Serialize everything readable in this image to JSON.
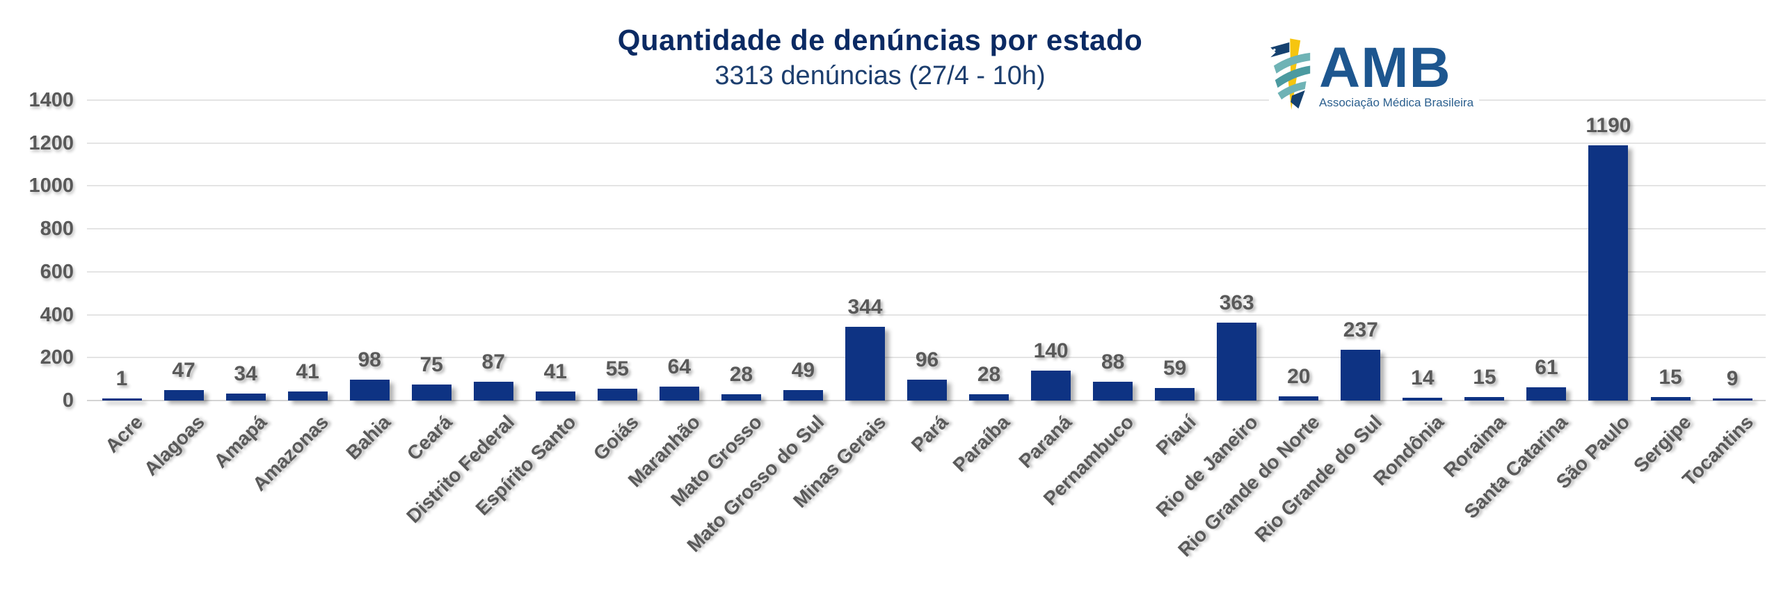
{
  "header": {
    "title": "Quantidade de denúncias por estado",
    "subtitle": "3313 denúncias (27/4 - 10h)"
  },
  "logo": {
    "acronym": "AMB",
    "tagline": "Associação Médica Brasileira",
    "icon": "caduceus-lightning-icon"
  },
  "chart_data": {
    "type": "bar",
    "title": "Quantidade de denúncias por estado",
    "subtitle": "3313 denúncias (27/4 - 10h)",
    "categories": [
      "Acre",
      "Alagoas",
      "Amapá",
      "Amazonas",
      "Bahia",
      "Ceará",
      "Distrito Federal",
      "Espírito Santo",
      "Goiás",
      "Maranhão",
      "Mato Grosso",
      "Mato Grosso do Sul",
      "Minas Gerais",
      "Pará",
      "Paraíba",
      "Paraná",
      "Pernambuco",
      "Piauí",
      "Rio de Janeiro",
      "Rio Grande do Norte",
      "Rio Grande do Sul",
      "Rondônia",
      "Roraima",
      "Santa Catarina",
      "São Paulo",
      "Sergipe",
      "Tocantins"
    ],
    "values": [
      1,
      47,
      34,
      41,
      98,
      75,
      87,
      41,
      55,
      64,
      28,
      49,
      344,
      96,
      28,
      140,
      88,
      59,
      363,
      20,
      237,
      14,
      15,
      61,
      1190,
      15,
      9
    ],
    "data_labels": true,
    "xlabel": "",
    "ylabel": "",
    "ylim": [
      0,
      1400
    ],
    "yticks": [
      0,
      200,
      400,
      600,
      800,
      1000,
      1200,
      1400
    ],
    "grid": "horizontal",
    "legend": false,
    "x_tick_rotation": 45,
    "colors": {
      "bar": "#0e3383",
      "grid": "#e4e4e4",
      "axis_labels": "#595959",
      "title": "#0b2a63",
      "subtitle": "#1c3e6e",
      "logo_text": "#1d568f",
      "logo_bolt": "#f6c50f",
      "logo_ribbon": "#5aa7ad",
      "logo_navy": "#15416f"
    }
  }
}
